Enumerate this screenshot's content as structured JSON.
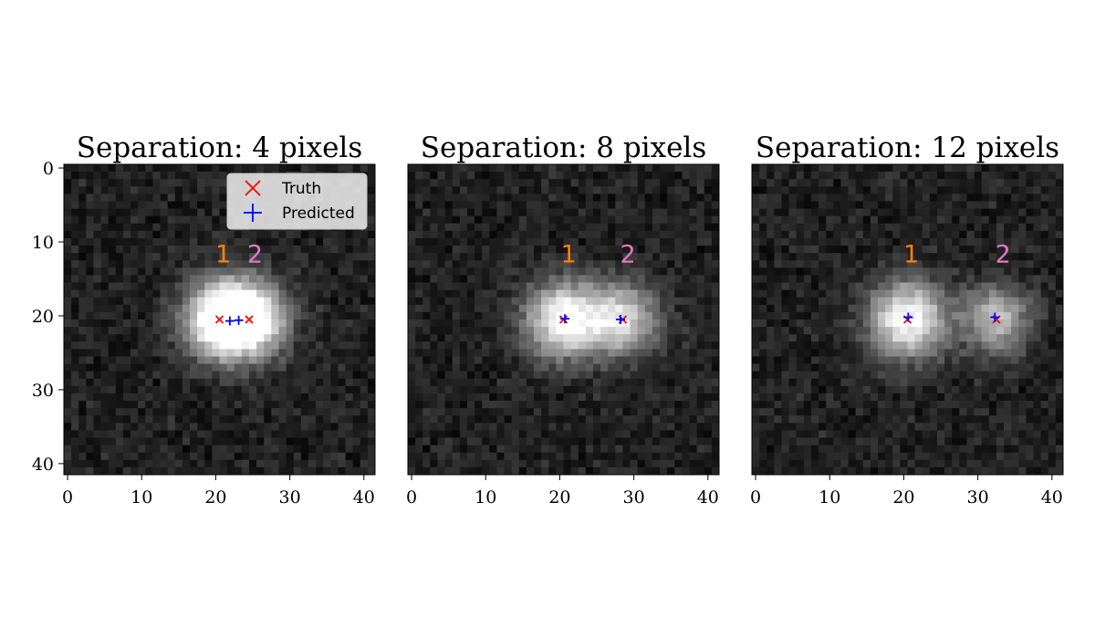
{
  "chart_data": [
    {
      "type": "heatmap",
      "title": "Separation: 4 pixels",
      "colormap": "gray",
      "xlim": [
        -0.5,
        41.5
      ],
      "ylim": [
        41.5,
        -0.5
      ],
      "xticks": [
        0,
        10,
        20,
        30,
        40
      ],
      "yticks": [
        0,
        10,
        20,
        30,
        40
      ],
      "background_level": 0.13,
      "sources": [
        {
          "label": "1",
          "color": "#ff7f0e",
          "x": 20.5,
          "y": 20.5,
          "peak": 0.88,
          "sigma": 3.6,
          "label_x": 21.0,
          "label_y": 12.8
        },
        {
          "label": "2",
          "color": "#e377c2",
          "x": 24.5,
          "y": 20.5,
          "peak": 0.88,
          "sigma": 3.6,
          "label_x": 25.3,
          "label_y": 12.8
        }
      ],
      "truth": [
        {
          "x": 20.5,
          "y": 20.5
        },
        {
          "x": 24.5,
          "y": 20.5
        }
      ],
      "predicted": [
        {
          "x": 21.9,
          "y": 20.7
        },
        {
          "x": 23.1,
          "y": 20.6
        }
      ],
      "legend": {
        "position": "upper right",
        "entries": [
          {
            "label": "Truth",
            "marker": "x",
            "color": "#ff0000"
          },
          {
            "label": "Predicted",
            "marker": "+",
            "color": "#0000ff"
          }
        ]
      }
    },
    {
      "type": "heatmap",
      "title": "Separation: 8 pixels",
      "colormap": "gray",
      "xlim": [
        -0.5,
        41.5
      ],
      "ylim": [
        41.5,
        -0.5
      ],
      "xticks": [
        0,
        10,
        20,
        30,
        40
      ],
      "yticks": [],
      "background_level": 0.13,
      "sources": [
        {
          "label": "1",
          "color": "#ff7f0e",
          "x": 20.5,
          "y": 20.5,
          "peak": 0.9,
          "sigma": 3.6,
          "label_x": 21.2,
          "label_y": 12.8
        },
        {
          "label": "2",
          "color": "#e377c2",
          "x": 28.5,
          "y": 20.5,
          "peak": 0.72,
          "sigma": 3.4,
          "label_x": 29.2,
          "label_y": 12.8
        }
      ],
      "truth": [
        {
          "x": 20.5,
          "y": 20.5
        },
        {
          "x": 28.5,
          "y": 20.5
        }
      ],
      "predicted": [
        {
          "x": 20.7,
          "y": 20.4
        },
        {
          "x": 28.2,
          "y": 20.5
        }
      ],
      "legend": null
    },
    {
      "type": "heatmap",
      "title": "Separation: 12 pixels",
      "colormap": "gray",
      "xlim": [
        -0.5,
        41.5
      ],
      "ylim": [
        41.5,
        -0.5
      ],
      "xticks": [
        0,
        10,
        20,
        30,
        40
      ],
      "yticks": [],
      "background_level": 0.13,
      "sources": [
        {
          "label": "1",
          "color": "#ff7f0e",
          "x": 20.5,
          "y": 20.5,
          "peak": 0.9,
          "sigma": 3.6,
          "label_x": 21.0,
          "label_y": 12.8
        },
        {
          "label": "2",
          "color": "#e377c2",
          "x": 32.5,
          "y": 20.5,
          "peak": 0.62,
          "sigma": 3.2,
          "label_x": 33.4,
          "label_y": 12.8
        }
      ],
      "truth": [
        {
          "x": 20.5,
          "y": 20.5
        },
        {
          "x": 32.5,
          "y": 20.5
        }
      ],
      "predicted": [
        {
          "x": 20.6,
          "y": 20.2
        },
        {
          "x": 32.3,
          "y": 20.2
        }
      ],
      "legend": null
    }
  ]
}
